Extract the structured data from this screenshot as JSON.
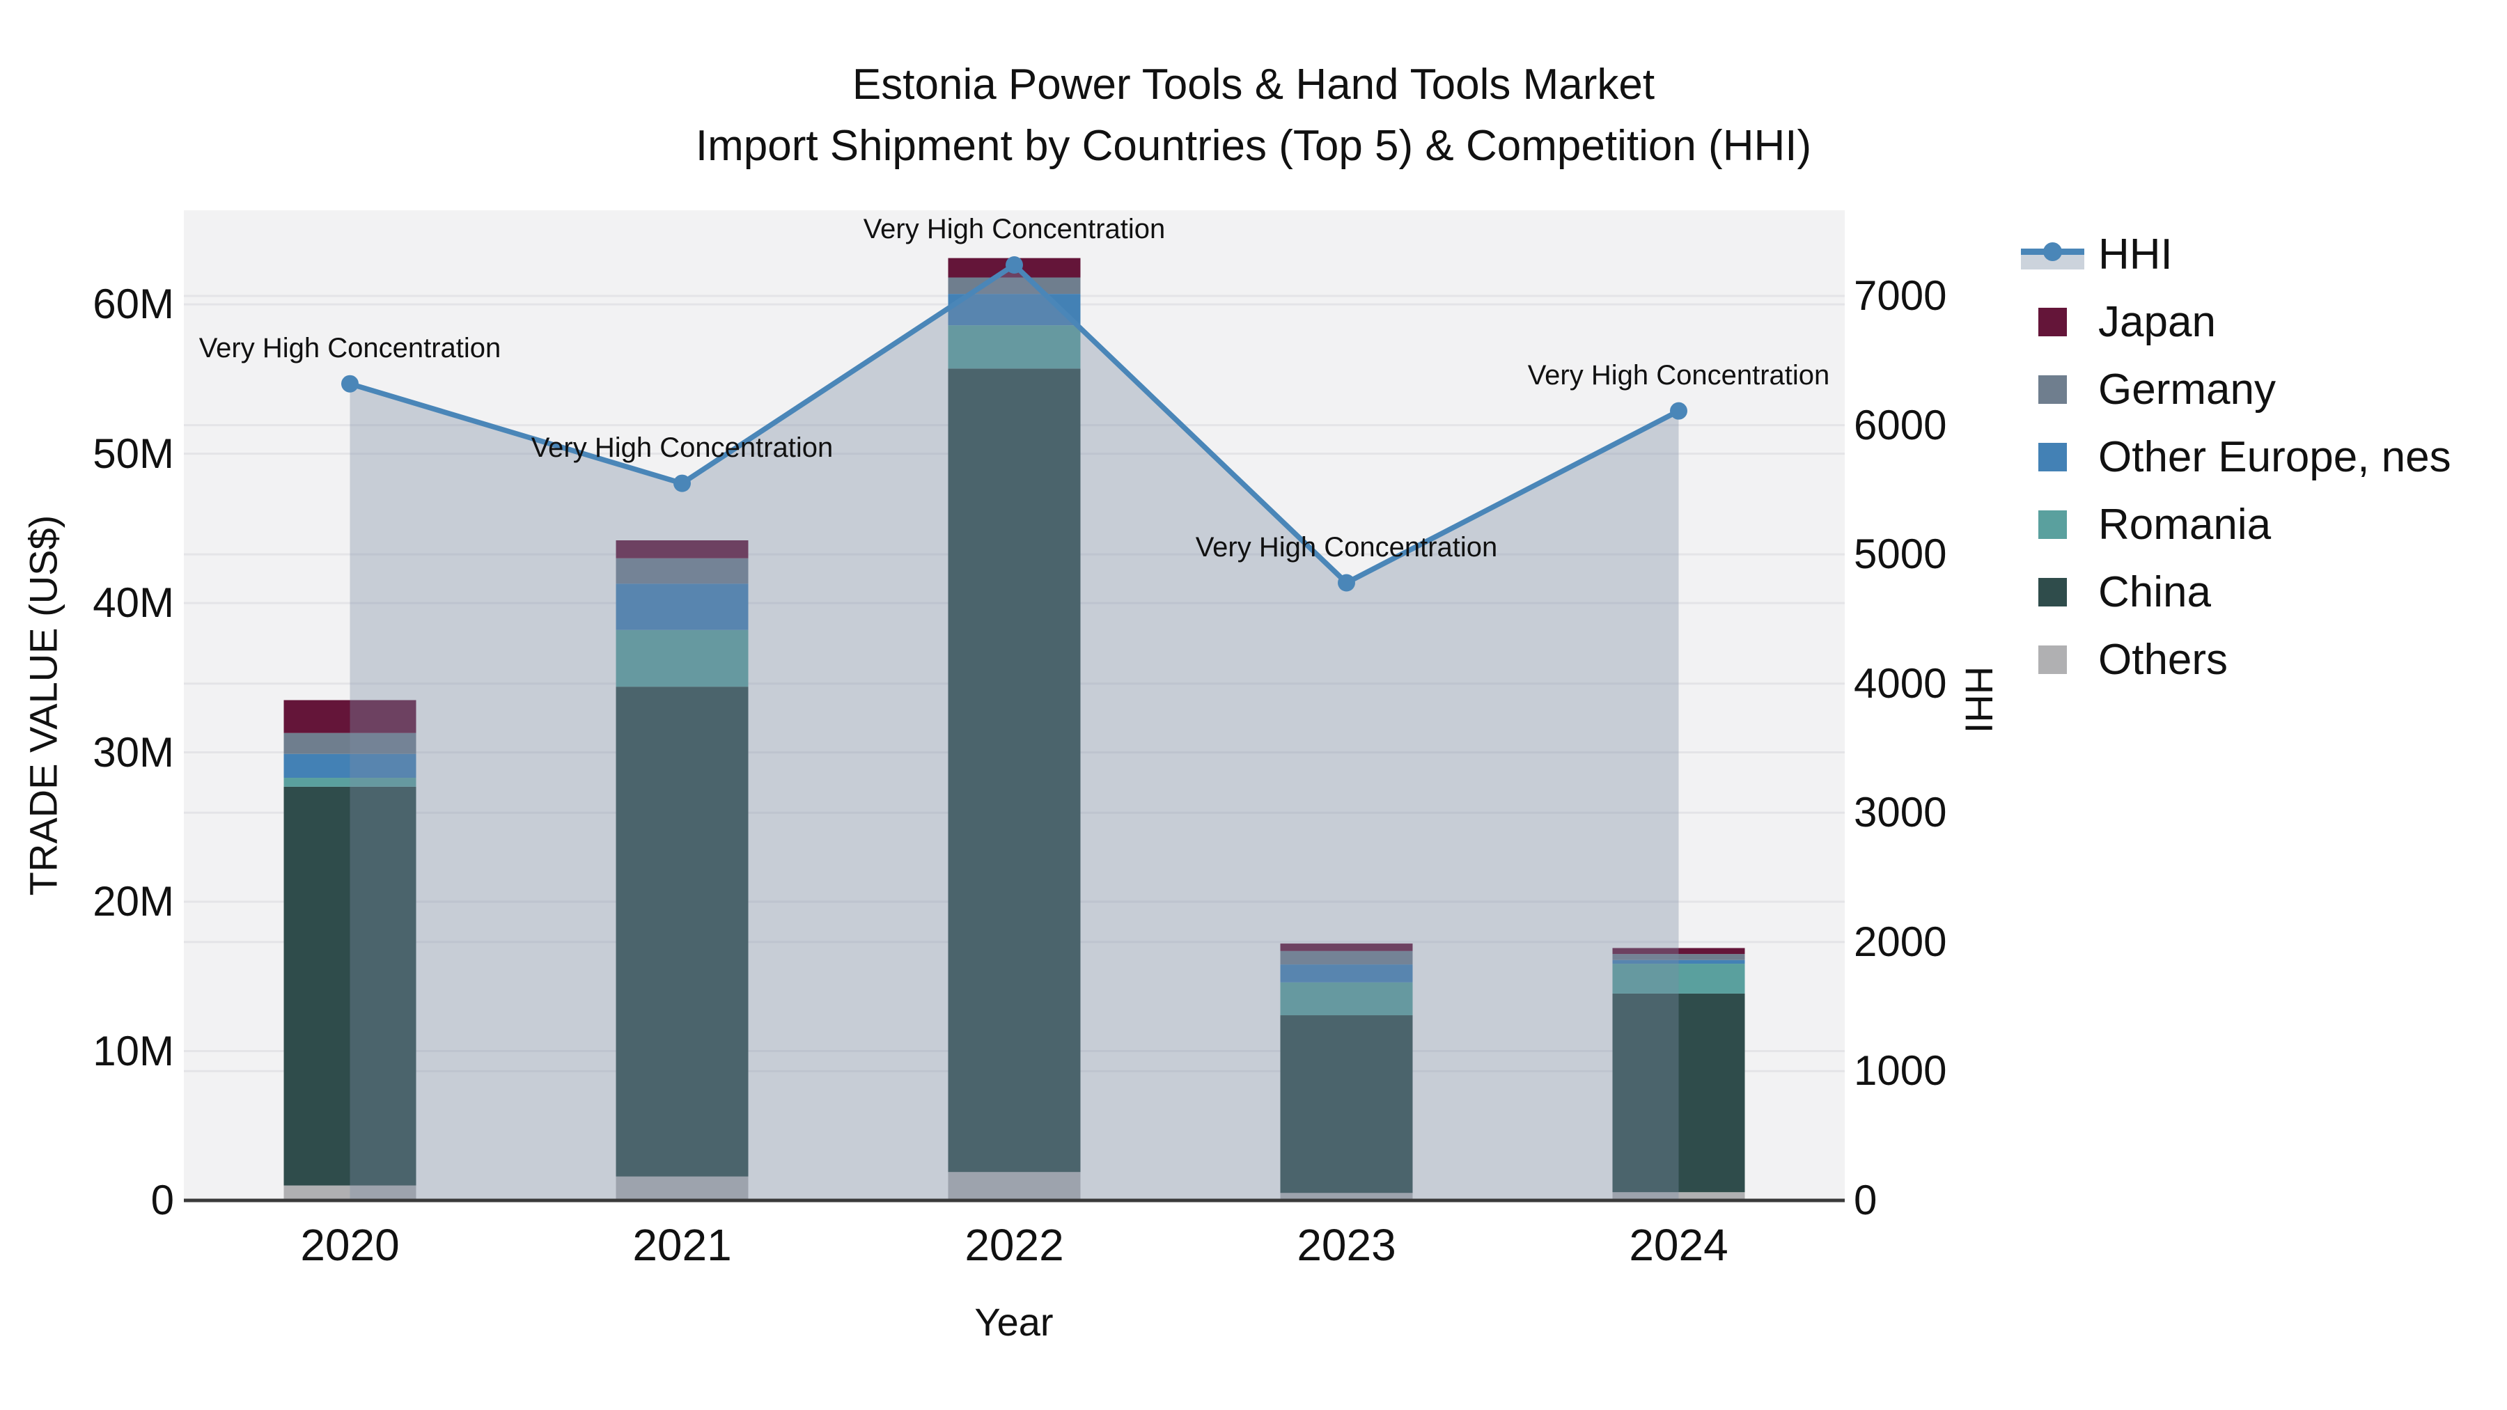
{
  "title": {
    "line1": "Estonia Power Tools & Hand Tools Market",
    "line2": "Import Shipment by Countries (Top 5) & Competition (HHI)"
  },
  "axes": {
    "x_label": "Year",
    "y_left_label": "TRADE VALUE (US$)",
    "y_right_label": "HHI",
    "y_left_ticks": [
      "0",
      "10M",
      "20M",
      "30M",
      "40M",
      "50M",
      "60M"
    ],
    "y_left_tick_values_musd": [
      0,
      10,
      20,
      30,
      40,
      50,
      60
    ],
    "y_right_ticks": [
      "0",
      "1000",
      "2000",
      "3000",
      "4000",
      "5000",
      "6000",
      "7000"
    ],
    "y_right_tick_values": [
      0,
      1000,
      2000,
      3000,
      4000,
      5000,
      6000,
      7000
    ],
    "x_ticks": [
      "2020",
      "2021",
      "2022",
      "2023",
      "2024"
    ]
  },
  "legend": {
    "items": [
      {
        "label": "HHI",
        "type": "line",
        "color": "#4a86b8"
      },
      {
        "label": "Japan",
        "type": "square",
        "color": "#641539"
      },
      {
        "label": "Germany",
        "type": "square",
        "color": "#6f7e8e"
      },
      {
        "label": "Other Europe, nes",
        "type": "square",
        "color": "#4381b5"
      },
      {
        "label": "Romania",
        "type": "square",
        "color": "#5aa09e"
      },
      {
        "label": "China",
        "type": "square",
        "color": "#2f4c4b"
      },
      {
        "label": "Others",
        "type": "square",
        "color": "#b0b0b2"
      }
    ]
  },
  "colors": {
    "plot_background": "#f2f2f3",
    "gridline": "#e4e4e7",
    "axis_line": "#3a3a3a",
    "hhi_line": "#4a86b8",
    "hhi_area_fill": "rgba(125,142,165,0.37)",
    "legend_hhi_band": "#ccd3dc",
    "text": "#111111"
  },
  "chart_data": {
    "type": "bar+line",
    "categories": [
      "2020",
      "2021",
      "2022",
      "2023",
      "2024"
    ],
    "bar_unit": "US$ millions (left axis)",
    "stack_order_bottom_to_top": [
      "Others",
      "China",
      "Romania",
      "Other Europe, nes",
      "Germany",
      "Japan"
    ],
    "series": [
      {
        "name": "Others",
        "color": "#b0b0b2",
        "values_musd": [
          1.0,
          1.6,
          1.9,
          0.5,
          0.55
        ]
      },
      {
        "name": "China",
        "color": "#2f4c4b",
        "values_musd": [
          26.7,
          32.8,
          53.8,
          11.9,
          13.3
        ]
      },
      {
        "name": "Romania",
        "color": "#5aa09e",
        "values_musd": [
          0.6,
          3.8,
          2.9,
          2.2,
          2.0
        ]
      },
      {
        "name": "Other Europe, nes",
        "color": "#4381b5",
        "values_musd": [
          1.6,
          3.1,
          2.1,
          1.2,
          0.25
        ]
      },
      {
        "name": "Germany",
        "color": "#6f7e8e",
        "values_musd": [
          1.4,
          1.7,
          1.1,
          0.9,
          0.4
        ]
      },
      {
        "name": "Japan",
        "color": "#641539",
        "values_musd": [
          2.2,
          1.2,
          1.3,
          0.5,
          0.4
        ]
      }
    ],
    "bar_totals_musd": [
      33.5,
      44.2,
      63.1,
      17.2,
      16.9
    ],
    "line_series": {
      "name": "HHI",
      "axis": "right",
      "values": [
        6320,
        5550,
        7240,
        4780,
        6110
      ],
      "color": "#4a86b8",
      "area_fill": "rgba(125,142,165,0.37)"
    },
    "annotations": [
      {
        "text": "Very High Concentration",
        "category": "2020"
      },
      {
        "text": "Very High Concentration",
        "category": "2021"
      },
      {
        "text": "Very High Concentration",
        "category": "2022"
      },
      {
        "text": "Very High Concentration",
        "category": "2023"
      },
      {
        "text": "Very High Concentration",
        "category": "2024"
      }
    ],
    "y_left_range_musd": [
      0,
      66.3
    ],
    "y_right_range": [
      0,
      7663
    ],
    "grid": true,
    "legend_position": "right"
  }
}
